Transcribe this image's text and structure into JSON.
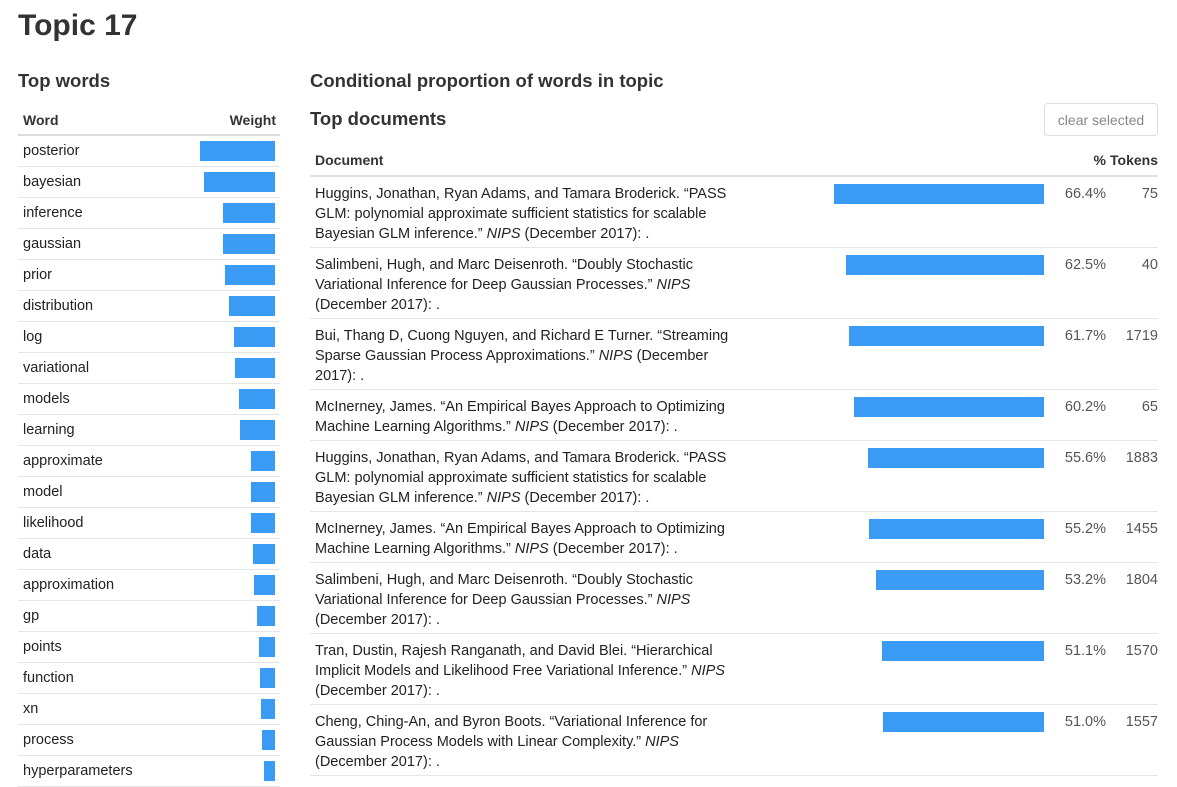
{
  "page": {
    "title": "Topic 17"
  },
  "top_words": {
    "heading": "Top words",
    "columns": {
      "word": "Word",
      "weight": "Weight"
    },
    "rows": [
      {
        "word": "posterior",
        "weight": 1.0
      },
      {
        "word": "bayesian",
        "weight": 0.95
      },
      {
        "word": "inference",
        "weight": 0.7
      },
      {
        "word": "gaussian",
        "weight": 0.7
      },
      {
        "word": "prior",
        "weight": 0.67
      },
      {
        "word": "distribution",
        "weight": 0.62
      },
      {
        "word": "log",
        "weight": 0.55
      },
      {
        "word": "variational",
        "weight": 0.53
      },
      {
        "word": "models",
        "weight": 0.48
      },
      {
        "word": "learning",
        "weight": 0.47
      },
      {
        "word": "approximate",
        "weight": 0.32
      },
      {
        "word": "model",
        "weight": 0.32
      },
      {
        "word": "likelihood",
        "weight": 0.32
      },
      {
        "word": "data",
        "weight": 0.3
      },
      {
        "word": "approximation",
        "weight": 0.28
      },
      {
        "word": "gp",
        "weight": 0.24
      },
      {
        "word": "points",
        "weight": 0.22
      },
      {
        "word": "function",
        "weight": 0.2
      },
      {
        "word": "xn",
        "weight": 0.19
      },
      {
        "word": "process",
        "weight": 0.17
      },
      {
        "word": "hyperparameters",
        "weight": 0.15
      }
    ]
  },
  "conditional": {
    "heading": "Conditional proportion of words in topic"
  },
  "top_documents": {
    "heading": "Top documents",
    "clear_label": "clear selected",
    "columns": {
      "document": "Document",
      "pct": "%",
      "tokens": "Tokens"
    },
    "rows": [
      {
        "citation": "Huggins, Jonathan, Ryan Adams, and Tamara Broderick. “PASS GLM: polynomial approximate sufficient statistics for scalable Bayesian GLM inference.”",
        "venue": "NIPS",
        "date": "(December 2017): .",
        "pct_value": 66.4,
        "pct": "66.4%",
        "tokens": "75"
      },
      {
        "citation": "Salimbeni, Hugh, and Marc Deisenroth. “Doubly Stochastic Variational Inference for Deep Gaussian Processes.”",
        "venue": "NIPS",
        "date": "(December 2017): .",
        "pct_value": 62.5,
        "pct": "62.5%",
        "tokens": "40"
      },
      {
        "citation": "Bui, Thang D, Cuong Nguyen, and Richard E Turner. “Streaming Sparse Gaussian Process Approximations.”",
        "venue": "NIPS",
        "date": "(December 2017): .",
        "pct_value": 61.7,
        "pct": "61.7%",
        "tokens": "1719"
      },
      {
        "citation": "McInerney, James. “An Empirical Bayes Approach to Optimizing Machine Learning Algorithms.”",
        "venue": "NIPS",
        "date": "(December 2017): .",
        "pct_value": 60.2,
        "pct": "60.2%",
        "tokens": "65"
      },
      {
        "citation": "Huggins, Jonathan, Ryan Adams, and Tamara Broderick. “PASS GLM: polynomial approximate sufficient statistics for scalable Bayesian GLM inference.”",
        "venue": "NIPS",
        "date": "(December 2017): .",
        "pct_value": 55.6,
        "pct": "55.6%",
        "tokens": "1883"
      },
      {
        "citation": "McInerney, James. “An Empirical Bayes Approach to Optimizing Machine Learning Algorithms.”",
        "venue": "NIPS",
        "date": "(December 2017): .",
        "pct_value": 55.2,
        "pct": "55.2%",
        "tokens": "1455"
      },
      {
        "citation": "Salimbeni, Hugh, and Marc Deisenroth. “Doubly Stochastic Variational Inference for Deep Gaussian Processes.”",
        "venue": "NIPS",
        "date": "(December 2017): .",
        "pct_value": 53.2,
        "pct": "53.2%",
        "tokens": "1804"
      },
      {
        "citation": "Tran, Dustin, Rajesh Ranganath, and David Blei. “Hierarchical Implicit Models and Likelihood Free Variational Inference.”",
        "venue": "NIPS",
        "date": "(December 2017): .",
        "pct_value": 51.1,
        "pct": "51.1%",
        "tokens": "1570"
      },
      {
        "citation": "Cheng, Ching-An, and Byron Boots. “Variational Inference for Gaussian Process Models with Linear Complexity.”",
        "venue": "NIPS",
        "date": "(December 2017): .",
        "pct_value": 51.0,
        "pct": "51.0%",
        "tokens": "1557"
      }
    ]
  },
  "colors": {
    "bar": "#3a9bf5"
  }
}
